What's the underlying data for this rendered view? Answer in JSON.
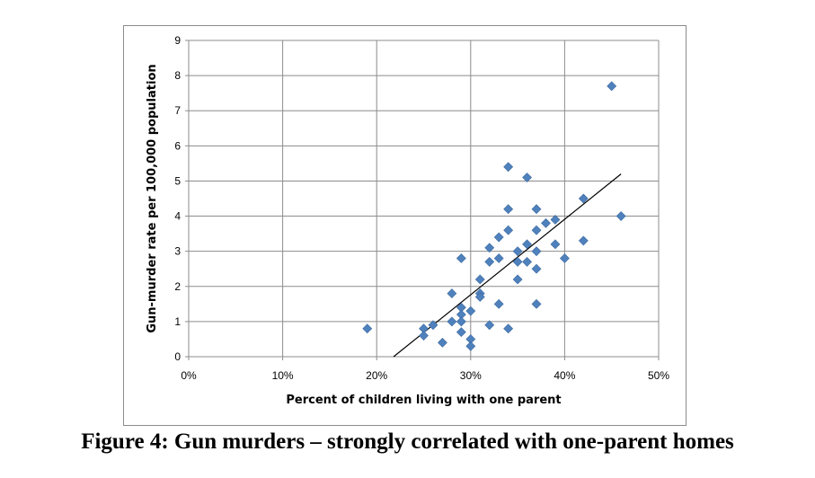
{
  "caption": "Figure 4: Gun murders – strongly correlated with one-parent homes",
  "chart_data": {
    "type": "scatter",
    "xlabel": "Percent of children living with one parent",
    "ylabel": "Gun-murder rate per 100,000 population",
    "xlim": [
      0,
      50
    ],
    "ylim": [
      0,
      9
    ],
    "x_ticks": [
      "0%",
      "10%",
      "20%",
      "30%",
      "40%",
      "50%"
    ],
    "y_ticks": [
      "0",
      "1",
      "2",
      "3",
      "4",
      "5",
      "6",
      "7",
      "8",
      "9"
    ],
    "grid": true,
    "marker_color": "#4f81bd",
    "trendline_color": "#000000",
    "trendline": {
      "x": [
        21.8,
        46
      ],
      "y": [
        0,
        5.2
      ]
    },
    "points": [
      {
        "x": 19,
        "y": 0.8
      },
      {
        "x": 25,
        "y": 0.8
      },
      {
        "x": 25,
        "y": 0.6
      },
      {
        "x": 26,
        "y": 0.9
      },
      {
        "x": 27,
        "y": 0.4
      },
      {
        "x": 28,
        "y": 1.0
      },
      {
        "x": 28,
        "y": 1.8
      },
      {
        "x": 29,
        "y": 2.8
      },
      {
        "x": 29,
        "y": 1.4
      },
      {
        "x": 29,
        "y": 1.2
      },
      {
        "x": 29,
        "y": 1.0
      },
      {
        "x": 29,
        "y": 0.7
      },
      {
        "x": 30,
        "y": 1.3
      },
      {
        "x": 30,
        "y": 0.5
      },
      {
        "x": 30,
        "y": 0.3
      },
      {
        "x": 31,
        "y": 2.2
      },
      {
        "x": 31,
        "y": 1.8
      },
      {
        "x": 31,
        "y": 1.7
      },
      {
        "x": 32,
        "y": 3.1
      },
      {
        "x": 32,
        "y": 2.7
      },
      {
        "x": 32,
        "y": 0.9
      },
      {
        "x": 33,
        "y": 3.4
      },
      {
        "x": 33,
        "y": 2.8
      },
      {
        "x": 33,
        "y": 1.5
      },
      {
        "x": 34,
        "y": 5.4
      },
      {
        "x": 34,
        "y": 4.2
      },
      {
        "x": 34,
        "y": 3.6
      },
      {
        "x": 34,
        "y": 0.8
      },
      {
        "x": 35,
        "y": 3.0
      },
      {
        "x": 35,
        "y": 2.7
      },
      {
        "x": 35,
        "y": 2.2
      },
      {
        "x": 36,
        "y": 5.1
      },
      {
        "x": 36,
        "y": 3.2
      },
      {
        "x": 36,
        "y": 2.7
      },
      {
        "x": 37,
        "y": 4.2
      },
      {
        "x": 37,
        "y": 3.6
      },
      {
        "x": 37,
        "y": 3.0
      },
      {
        "x": 37,
        "y": 2.5
      },
      {
        "x": 37,
        "y": 1.5
      },
      {
        "x": 38,
        "y": 3.8
      },
      {
        "x": 39,
        "y": 3.9
      },
      {
        "x": 39,
        "y": 3.2
      },
      {
        "x": 40,
        "y": 2.8
      },
      {
        "x": 42,
        "y": 4.5
      },
      {
        "x": 42,
        "y": 3.3
      },
      {
        "x": 45,
        "y": 7.7
      },
      {
        "x": 46,
        "y": 4.0
      }
    ]
  }
}
